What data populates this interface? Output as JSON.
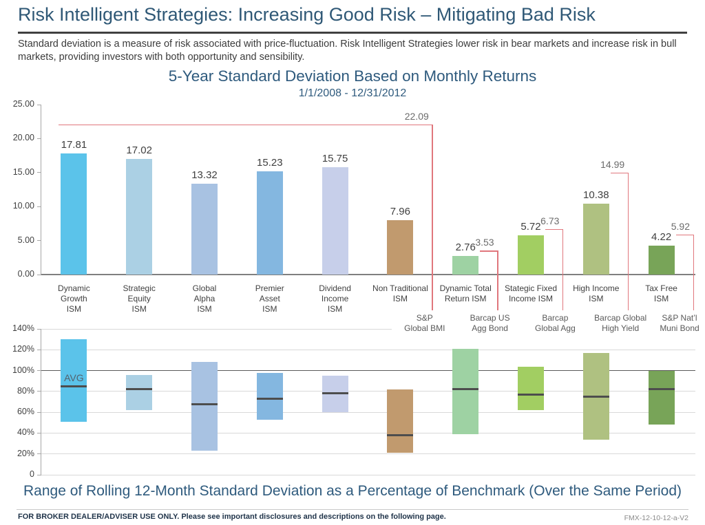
{
  "header": {
    "title": "Risk Intelligent Strategies: Increasing Good Risk – Mitigating Bad Risk",
    "description": "Standard deviation is a measure of risk associated with price-fluctuation. Risk Intelligent Strategies lower risk in bear markets and increase risk in bull markets, providing investors with both opportunity and sensibility."
  },
  "footer": {
    "disclaimer": "FOR BROKER DEALER/ADVISER USE ONLY. Please see important disclosures and descriptions on the following page.",
    "code": "FMX-12-10-12-a-V2"
  },
  "chart_data": [
    {
      "type": "bar",
      "title": "5-Year Standard Deviation Based on Monthly Returns",
      "subtitle": "1/1/2008 - 12/31/2012",
      "ylim": [
        0,
        25
      ],
      "y_ticks": [
        "0.00",
        "5.00",
        "10.00",
        "15.00",
        "20.00",
        "25.00"
      ],
      "grid": false,
      "legend_position": "none",
      "categories": [
        [
          "Dynamic",
          "Growth",
          "ISM"
        ],
        [
          "Strategic",
          "Equity",
          "ISM"
        ],
        [
          "Global",
          "Alpha",
          "ISM"
        ],
        [
          "Premier",
          "Asset",
          "ISM"
        ],
        [
          "Dividend",
          "Income",
          "ISM"
        ],
        [
          "Non Traditional",
          "ISM"
        ],
        [
          "Dynamic Total",
          "Return ISM"
        ],
        [
          "Stategic Fixed",
          "Income ISM"
        ],
        [
          "High Income",
          "ISM"
        ],
        [
          "Tax Free",
          "ISM"
        ]
      ],
      "values": [
        17.81,
        17.02,
        13.32,
        15.23,
        15.75,
        7.96,
        2.76,
        5.72,
        10.38,
        4.22
      ],
      "colors": [
        "#5BC3EA",
        "#ABD0E4",
        "#A8C2E2",
        "#84B7E0",
        "#C7CFEA",
        "#C19A6E",
        "#9ED2A3",
        "#A2CE62",
        "#AFC181",
        "#78A458"
      ],
      "benchmarks": [
        {
          "col": 5,
          "value": 22.09,
          "label": [
            "S&P",
            "Global BMI"
          ],
          "span": "wide"
        },
        {
          "col": 6,
          "value": 3.53,
          "label": [
            "Barcap US",
            "Agg Bond"
          ]
        },
        {
          "col": 7,
          "value": 6.73,
          "label": [
            "Barcap",
            "Global Agg"
          ]
        },
        {
          "col": 8,
          "value": 14.99,
          "label": [
            "Barcap Global",
            "High Yield"
          ]
        },
        {
          "col": 9,
          "value": 5.92,
          "label": [
            "S&P Nat’l",
            "Muni Bond"
          ]
        }
      ],
      "benchmark_line_color": "#E0767C",
      "benchmark_value_color": "#6B6B6B",
      "benchmark_label_color": "#595959",
      "value_label_color": "#3F3F3F",
      "axis_color": "#A6A6A6",
      "baseline_color": "#7F7F7F"
    },
    {
      "type": "range-bar",
      "title": "Range of Rolling 12-Month Standard Deviation as a Percentage of Benchmark (Over the Same Period)",
      "ylim": [
        0,
        140
      ],
      "y_ticks": [
        "0",
        "20%",
        "40%",
        "60%",
        "80%",
        "100%",
        "120%",
        "140%"
      ],
      "grid": true,
      "grid_color": "#D9D9D9",
      "emphasis_gridline": 100,
      "emphasis_grid_color": "#595959",
      "avg_label": "AVG",
      "avg_line_color": "#4D4D4D",
      "avg_label_color": "#53626E",
      "low": [
        51,
        62,
        23,
        53,
        60,
        21,
        39,
        62,
        34,
        48
      ],
      "high": [
        130,
        96,
        108,
        98,
        95,
        82,
        121,
        104,
        117,
        100
      ],
      "avg": [
        85,
        82,
        68,
        73,
        78,
        38,
        82,
        77,
        75,
        82
      ]
    }
  ]
}
